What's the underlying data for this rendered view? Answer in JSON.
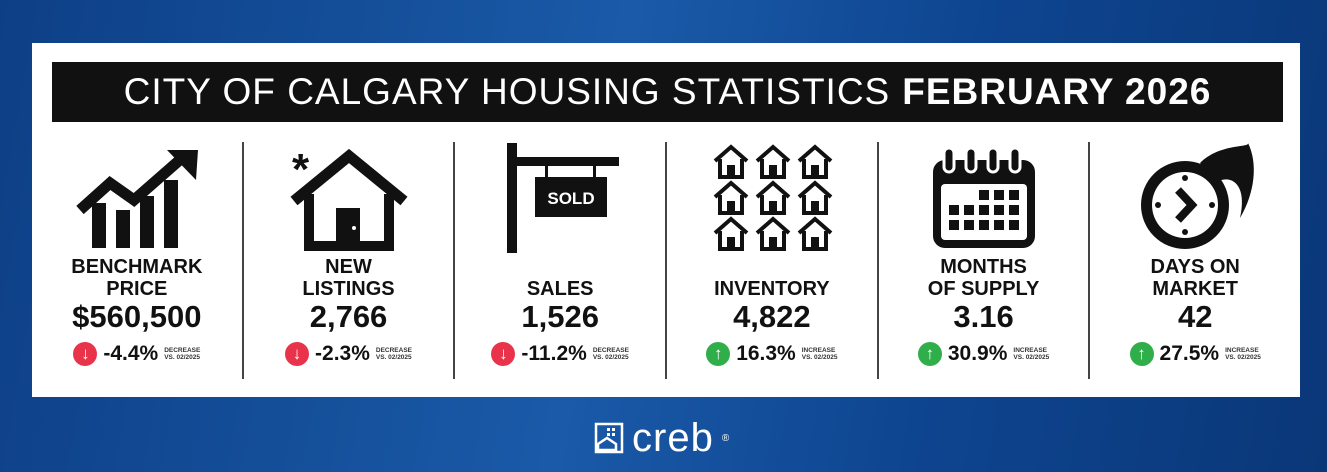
{
  "title": {
    "light": "CITY OF CALGARY HOUSING STATISTICS",
    "bold": "FEBRUARY 2026"
  },
  "colors": {
    "down": "#e8334a",
    "up": "#2fae4a"
  },
  "stats": [
    {
      "icon": "chart-up-icon",
      "label1": "BENCHMARK",
      "label2": "PRICE",
      "value": "$560,500",
      "direction": "down",
      "change": "-4.4%",
      "note1": "DECREASE",
      "note2": "VS. 02/2025"
    },
    {
      "icon": "house-icon",
      "label1": "NEW",
      "label2": "LISTINGS",
      "value": "2,766",
      "direction": "down",
      "change": "-2.3%",
      "note1": "DECREASE",
      "note2": "VS. 02/2025"
    },
    {
      "icon": "sold-sign-icon",
      "label1": "",
      "label2": "SALES",
      "value": "1,526",
      "direction": "down",
      "change": "-11.2%",
      "note1": "DECREASE",
      "note2": "VS. 02/2025",
      "sign": "SOLD"
    },
    {
      "icon": "houses-grid-icon",
      "label1": "",
      "label2": "INVENTORY",
      "value": "4,822",
      "direction": "up",
      "change": "16.3%",
      "note1": "INCREASE",
      "note2": "VS. 02/2025"
    },
    {
      "icon": "calendar-icon",
      "label1": "MONTHS",
      "label2": "OF SUPPLY",
      "value": "3.16",
      "direction": "up",
      "change": "30.9%",
      "note1": "INCREASE",
      "note2": "VS. 02/2025"
    },
    {
      "icon": "clock-fire-icon",
      "label1": "DAYS ON",
      "label2": "MARKET",
      "value": "42",
      "direction": "up",
      "change": "27.5%",
      "note1": "INCREASE",
      "note2": "VS. 02/2025"
    }
  ],
  "logo": {
    "text": "creb",
    "mark": "®"
  }
}
